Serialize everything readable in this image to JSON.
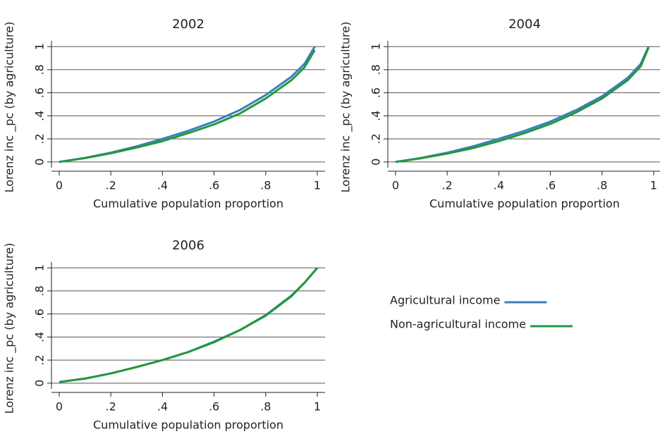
{
  "chart_data": [
    {
      "type": "line",
      "title": "2002",
      "x_label": "Cumulative population proportion",
      "y_label": "Lorenz inc _pc (by agriculture)",
      "x": [
        0,
        0.1,
        0.2,
        0.3,
        0.4,
        0.5,
        0.6,
        0.7,
        0.8,
        0.9,
        0.95,
        0.99
      ],
      "series": [
        {
          "name": "Agricultural income",
          "color": "#3a80bd",
          "values": [
            0,
            0.035,
            0.08,
            0.135,
            0.2,
            0.27,
            0.35,
            0.45,
            0.58,
            0.74,
            0.85,
            1.0
          ]
        },
        {
          "name": "Non-agricultural income",
          "color": "#23983a",
          "values": [
            0,
            0.033,
            0.075,
            0.125,
            0.18,
            0.25,
            0.325,
            0.42,
            0.55,
            0.71,
            0.82,
            0.97
          ]
        }
      ],
      "xlim": [
        -0.03,
        1.03
      ],
      "ylim": [
        -0.05,
        1.05
      ],
      "xticks": [
        0,
        {
          "value": 0.2,
          "label": ".2"
        },
        {
          "value": 0.4,
          "label": ".4"
        },
        {
          "value": 0.6,
          "label": ".6"
        },
        {
          "value": 0.8,
          "label": ".8"
        },
        1
      ],
      "yticks": [
        0,
        {
          "value": 0.2,
          "label": ".2"
        },
        {
          "value": 0.4,
          "label": ".4"
        },
        {
          "value": 0.6,
          "label": ".6"
        },
        {
          "value": 0.8,
          "label": ".8"
        },
        1
      ],
      "grid": true,
      "legend": "right"
    },
    {
      "type": "line",
      "title": "2004",
      "x_label": "Cumulative population proportion",
      "y_label": "Lorenz inc _pc (by agriculture)",
      "x": [
        0,
        0.1,
        0.2,
        0.3,
        0.4,
        0.5,
        0.6,
        0.7,
        0.8,
        0.9,
        0.95,
        0.98
      ],
      "series": [
        {
          "name": "Agricultural income",
          "color": "#3a80bd",
          "values": [
            0,
            0.035,
            0.08,
            0.135,
            0.2,
            0.27,
            0.35,
            0.45,
            0.57,
            0.73,
            0.85,
            1.0
          ]
        },
        {
          "name": "Non-agricultural income",
          "color": "#23983a",
          "values": [
            0,
            0.032,
            0.072,
            0.12,
            0.18,
            0.25,
            0.33,
            0.43,
            0.55,
            0.71,
            0.83,
            0.99
          ]
        }
      ],
      "xlim": [
        -0.03,
        1.03
      ],
      "ylim": [
        -0.05,
        1.05
      ],
      "xticks": [
        0,
        {
          "value": 0.2,
          "label": ".2"
        },
        {
          "value": 0.4,
          "label": ".4"
        },
        {
          "value": 0.6,
          "label": ".6"
        },
        {
          "value": 0.8,
          "label": ".8"
        },
        1
      ],
      "yticks": [
        0,
        {
          "value": 0.2,
          "label": ".2"
        },
        {
          "value": 0.4,
          "label": ".4"
        },
        {
          "value": 0.6,
          "label": ".6"
        },
        {
          "value": 0.8,
          "label": ".8"
        },
        1
      ],
      "grid": true
    },
    {
      "type": "line",
      "title": "2006",
      "x_label": "Cumulative population proportion",
      "y_label": "Lorenz inc _pc (by agriculture)",
      "x": [
        0,
        0.1,
        0.2,
        0.3,
        0.4,
        0.5,
        0.6,
        0.7,
        0.8,
        0.9,
        0.95,
        1.0
      ],
      "series": [
        {
          "name": "Agricultural income",
          "color": "#3a80bd",
          "values": [
            0.01,
            0.04,
            0.085,
            0.14,
            0.2,
            0.27,
            0.36,
            0.46,
            0.59,
            0.76,
            0.87,
            1.0
          ]
        },
        {
          "name": "Non-agricultural income",
          "color": "#23983a",
          "values": [
            0.01,
            0.039,
            0.084,
            0.14,
            0.2,
            0.27,
            0.355,
            0.46,
            0.585,
            0.755,
            0.87,
            1.0
          ]
        }
      ],
      "xlim": [
        -0.03,
        1.03
      ],
      "ylim": [
        -0.05,
        1.05
      ],
      "xticks": [
        0,
        {
          "value": 0.2,
          "label": ".2"
        },
        {
          "value": 0.4,
          "label": ".4"
        },
        {
          "value": 0.6,
          "label": ".6"
        },
        {
          "value": 0.8,
          "label": ".8"
        },
        1
      ],
      "yticks": [
        0,
        {
          "value": 0.2,
          "label": ".2"
        },
        {
          "value": 0.4,
          "label": ".4"
        },
        {
          "value": 0.6,
          "label": ".6"
        },
        {
          "value": 0.8,
          "label": ".8"
        },
        1
      ],
      "grid": true
    }
  ]
}
